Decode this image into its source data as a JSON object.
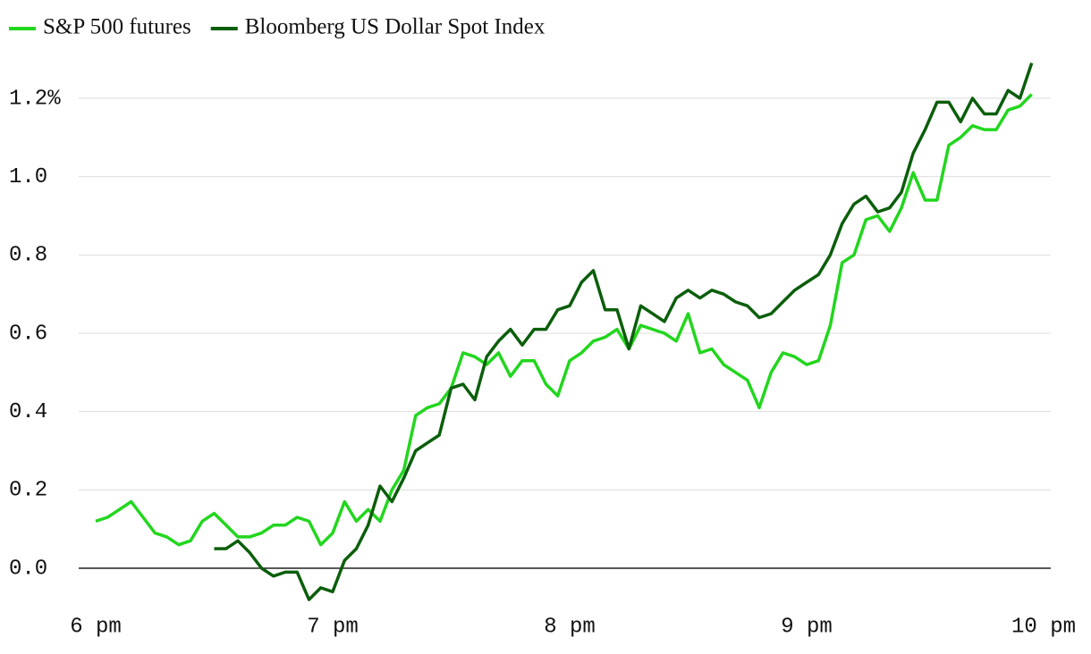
{
  "chart_data": {
    "type": "line",
    "x": [
      18,
      18.05,
      18.1,
      18.15,
      18.2,
      18.25,
      18.3,
      18.35,
      18.4,
      18.45,
      18.5,
      18.55,
      18.6,
      18.65,
      18.7,
      18.75,
      18.8,
      18.85,
      18.9,
      18.95,
      19,
      19.05,
      19.1,
      19.15,
      19.2,
      19.25,
      19.3,
      19.35,
      19.4,
      19.45,
      19.5,
      19.55,
      19.6,
      19.65,
      19.7,
      19.75,
      19.8,
      19.85,
      19.9,
      19.95,
      20,
      20.05,
      20.1,
      20.15,
      20.2,
      20.25,
      20.3,
      20.35,
      20.4,
      20.45,
      20.5,
      20.55,
      20.6,
      20.65,
      20.7,
      20.75,
      20.8,
      20.85,
      20.9,
      20.95,
      21,
      21.05,
      21.1,
      21.15,
      21.2,
      21.25,
      21.3,
      21.35,
      21.4,
      21.45,
      21.5,
      21.55,
      21.6,
      21.65,
      21.7,
      21.75,
      21.8,
      21.85,
      21.9,
      21.95
    ],
    "series": [
      {
        "name": "S&P 500 futures",
        "color": "#22d61e",
        "values": [
          0.12,
          0.13,
          0.15,
          0.17,
          0.13,
          0.09,
          0.08,
          0.06,
          0.07,
          0.12,
          0.14,
          0.11,
          0.08,
          0.08,
          0.09,
          0.11,
          0.11,
          0.13,
          0.12,
          0.06,
          0.09,
          0.17,
          0.12,
          0.15,
          0.12,
          0.2,
          0.25,
          0.39,
          0.41,
          0.42,
          0.46,
          0.55,
          0.54,
          0.52,
          0.55,
          0.49,
          0.53,
          0.53,
          0.47,
          0.44,
          0.53,
          0.55,
          0.58,
          0.59,
          0.61,
          0.56,
          0.62,
          0.61,
          0.6,
          0.58,
          0.65,
          0.55,
          0.56,
          0.52,
          0.5,
          0.48,
          0.41,
          0.5,
          0.55,
          0.54,
          0.52,
          0.53,
          0.62,
          0.78,
          0.8,
          0.89,
          0.9,
          0.86,
          0.92,
          1.01,
          0.94,
          0.94,
          1.08,
          1.1,
          1.13,
          1.12,
          1.12,
          1.17,
          1.18,
          1.21
        ]
      },
      {
        "name": "Bloomberg US Dollar Spot Index",
        "color": "#0b5e0b",
        "values": [
          null,
          null,
          null,
          null,
          null,
          null,
          null,
          null,
          null,
          null,
          0.05,
          0.05,
          0.07,
          0.04,
          0.0,
          -0.02,
          -0.01,
          -0.01,
          -0.08,
          -0.05,
          -0.06,
          0.02,
          0.05,
          0.11,
          0.21,
          0.17,
          0.23,
          0.3,
          0.32,
          0.34,
          0.46,
          0.47,
          0.43,
          0.54,
          0.58,
          0.61,
          0.57,
          0.61,
          0.61,
          0.66,
          0.67,
          0.73,
          0.76,
          0.66,
          0.66,
          0.56,
          0.67,
          0.65,
          0.63,
          0.69,
          0.71,
          0.69,
          0.71,
          0.7,
          0.68,
          0.67,
          0.64,
          0.65,
          0.68,
          0.71,
          0.73,
          0.75,
          0.8,
          0.88,
          0.93,
          0.95,
          0.91,
          0.92,
          0.96,
          1.06,
          1.12,
          1.19,
          1.19,
          1.14,
          1.2,
          1.16,
          1.16,
          1.22,
          1.2,
          1.29
        ]
      }
    ],
    "xlim": [
      18,
      22
    ],
    "xticks": [
      {
        "value": 18,
        "label": "6 pm"
      },
      {
        "value": 19,
        "label": "7 pm"
      },
      {
        "value": 20,
        "label": "8 pm"
      },
      {
        "value": 21,
        "label": "9 pm"
      },
      {
        "value": 22,
        "label": "10 pm"
      }
    ],
    "ylim": [
      -0.1,
      1.32
    ],
    "yticks": [
      {
        "value": 0,
        "label": "0.0"
      },
      0.2,
      0.4,
      0.6,
      0.8,
      {
        "value": 1.0,
        "label": "1.0"
      },
      {
        "value": 1.2,
        "label": "1.2%"
      }
    ],
    "grid": true
  }
}
